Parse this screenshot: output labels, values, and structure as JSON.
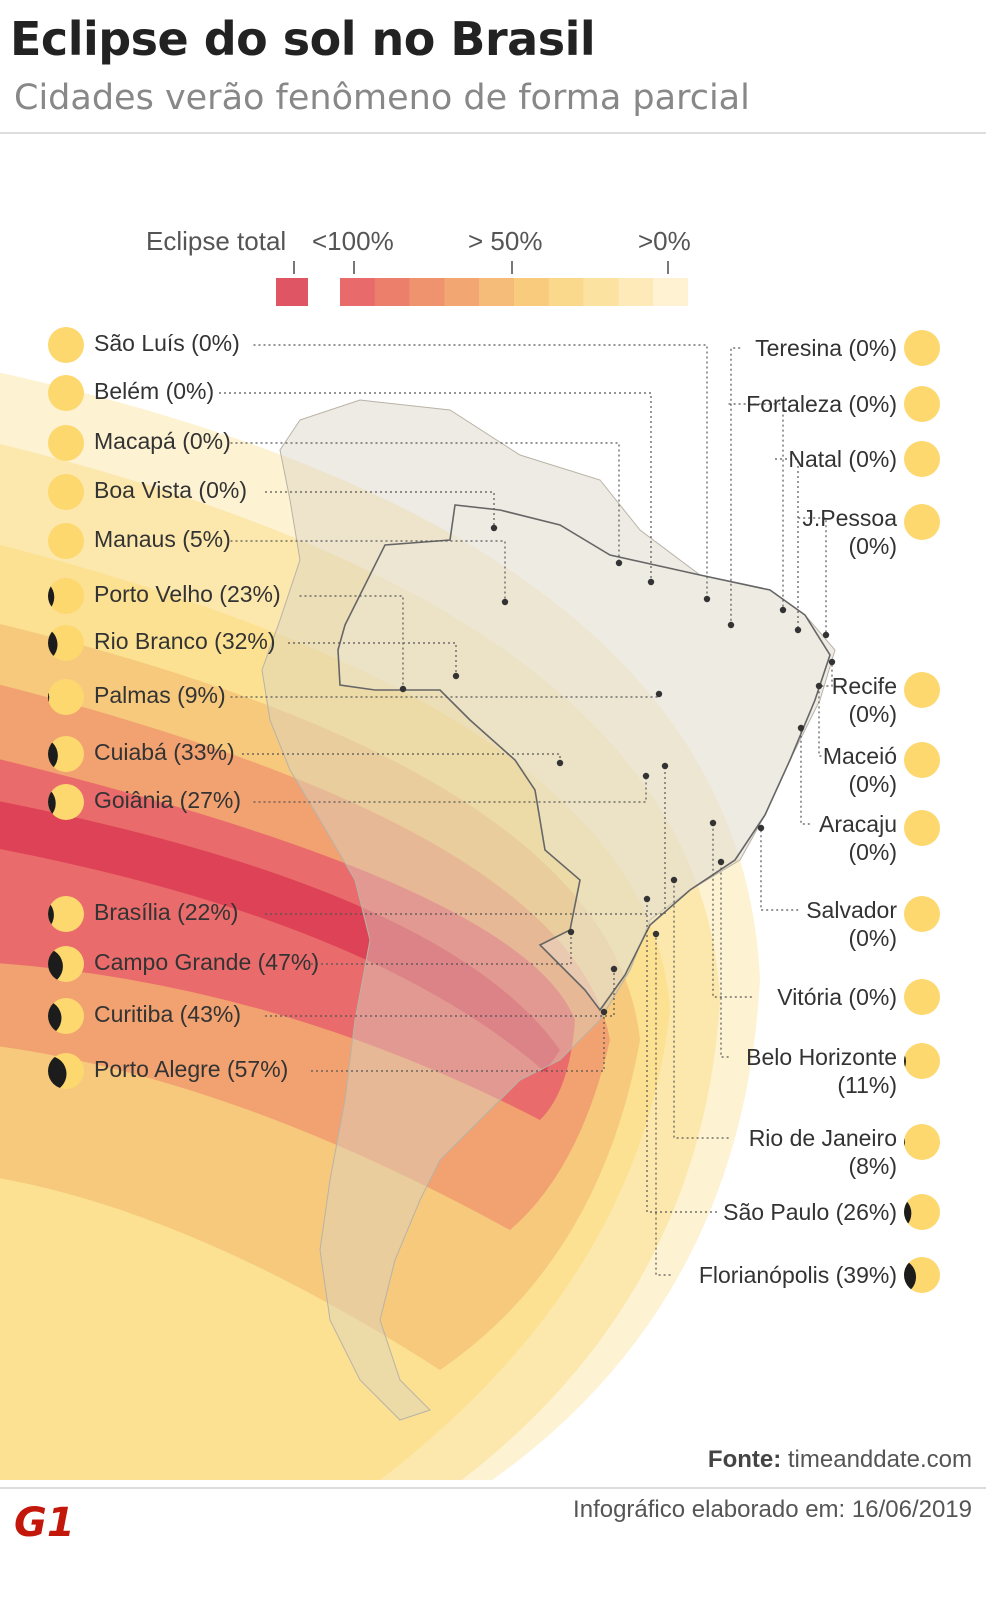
{
  "title": "Eclipse do sol no Brasil",
  "subtitle": "Cidades verão fenômeno de forma parcial",
  "legend": {
    "labels": [
      "Eclipse total",
      "<100%",
      "> 50%",
      ">0%"
    ],
    "total_color": "#e05563",
    "scale_colors": [
      "#e96a6a",
      "#ec7e6c",
      "#ef936e",
      "#f2a773",
      "#f5bb78",
      "#f8cb7d",
      "#fbd98c",
      "#fce2a0",
      "#fdeab8",
      "#fef2d2"
    ]
  },
  "colors": {
    "band_total": "#dd4055",
    "band_dark": "#e8686a",
    "band_mid": "#f0a070",
    "band_light": "#f6c77c",
    "band_pale": "#fbe08f",
    "band_faint": "#fdefc6",
    "sun": "#fcd86f",
    "moon": "#1c1c1c"
  },
  "cities_left": [
    {
      "label": "São Luís (0%)",
      "percent": 0
    },
    {
      "label": "Belém (0%)",
      "percent": 0
    },
    {
      "label": "Macapá (0%)",
      "percent": 0
    },
    {
      "label": "Boa Vista (0%)",
      "percent": 0
    },
    {
      "label": "Manaus (5%)",
      "percent": 5
    },
    {
      "label": "Porto Velho (23%)",
      "percent": 23
    },
    {
      "label": "Rio Branco (32%)",
      "percent": 32
    },
    {
      "label": "Palmas (9%)",
      "percent": 9
    },
    {
      "label": "Cuiabá (33%)",
      "percent": 33
    },
    {
      "label": "Goiânia (27%)",
      "percent": 27
    },
    {
      "label": "Brasília (22%)",
      "percent": 22
    },
    {
      "label": "Campo Grande (47%)",
      "percent": 47
    },
    {
      "label": "Curitiba (43%)",
      "percent": 43
    },
    {
      "label": "Porto Alegre (57%)",
      "percent": 57
    }
  ],
  "cities_right": [
    {
      "lines": [
        "Teresina (0%)"
      ],
      "percent": 0
    },
    {
      "lines": [
        "Fortaleza (0%)"
      ],
      "percent": 0
    },
    {
      "lines": [
        "Natal (0%)"
      ],
      "percent": 0
    },
    {
      "lines": [
        "J.Pessoa",
        "(0%)"
      ],
      "percent": 0
    },
    {
      "lines": [
        "Recife",
        "(0%)"
      ],
      "percent": 0
    },
    {
      "lines": [
        "Maceió",
        "(0%)"
      ],
      "percent": 0
    },
    {
      "lines": [
        "Aracaju",
        "(0%)"
      ],
      "percent": 0
    },
    {
      "lines": [
        "Salvador",
        "(0%)"
      ],
      "percent": 0
    },
    {
      "lines": [
        "Vitória (0%)"
      ],
      "percent": 0
    },
    {
      "lines": [
        "Belo Horizonte",
        "(11%)"
      ],
      "percent": 11
    },
    {
      "lines": [
        "Rio de Janeiro",
        "(8%)"
      ],
      "percent": 8
    },
    {
      "lines": [
        "São Paulo (26%)"
      ],
      "percent": 26
    },
    {
      "lines": [
        "Florianópolis (39%)"
      ],
      "percent": 39
    }
  ],
  "source_label": "Fonte:",
  "source": "timeanddate.com",
  "credit": "Infográfico elaborado em: 16/06/2019",
  "logo": "G1"
}
